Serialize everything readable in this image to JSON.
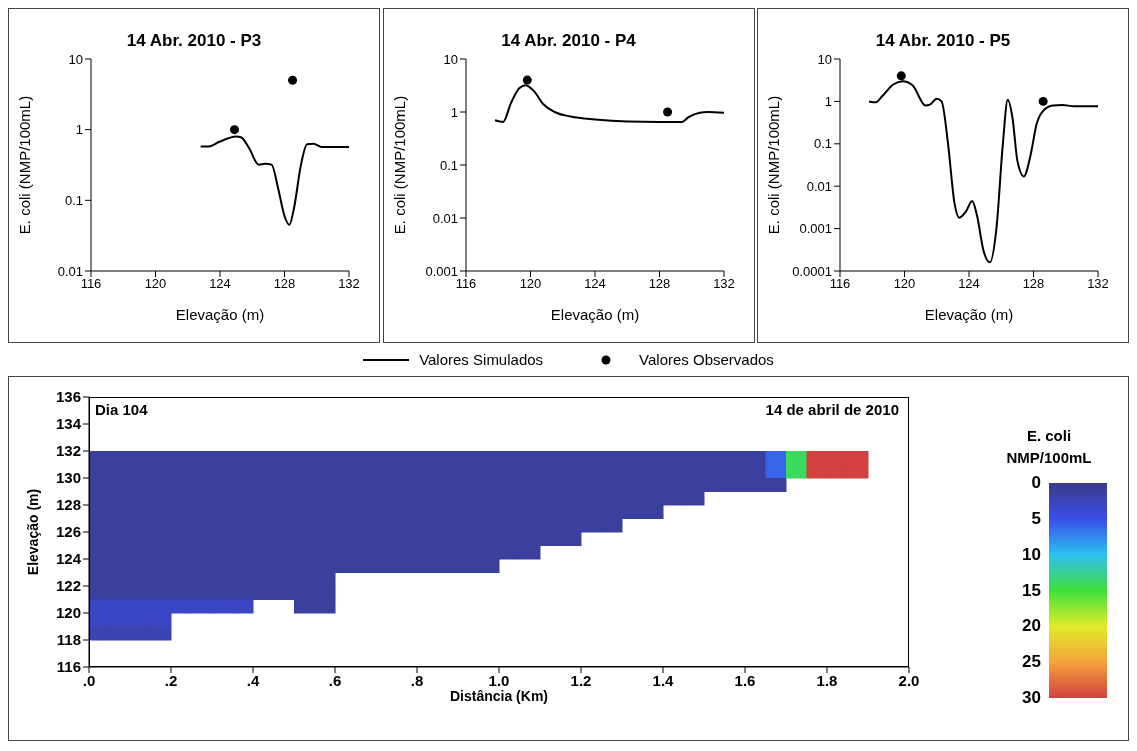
{
  "chart_data": [
    {
      "type": "line",
      "title": "14 Abr. 2010 - P3",
      "xlabel": "Elevação (m)",
      "ylabel": "E. coli (NMP/100mL)",
      "log": "y",
      "xlim": [
        116,
        132
      ],
      "xticks": [
        116,
        120,
        124,
        128,
        132
      ],
      "ylim": [
        0.01,
        10
      ],
      "yticks": [
        0.01,
        0.1,
        1,
        10
      ],
      "legend": "bottom",
      "series": [
        {
          "name": "Valores Simulados",
          "type": "line",
          "marker": "none",
          "color": "#000000",
          "x": [
            122.8,
            123.3,
            124,
            125,
            125.3,
            125.8,
            126.4,
            126.8,
            127.2,
            127.6,
            128,
            128.3,
            128.6,
            129,
            129.4,
            129.8,
            130.3,
            132
          ],
          "values": [
            0.58,
            0.58,
            0.68,
            0.8,
            0.78,
            0.55,
            0.32,
            0.33,
            0.32,
            0.15,
            0.06,
            0.045,
            0.08,
            0.3,
            0.62,
            0.63,
            0.57,
            0.57
          ]
        },
        {
          "name": "Valores Observados",
          "type": "scatter",
          "marker": "circle",
          "color": "#000000",
          "x": [
            124.9,
            128.5
          ],
          "values": [
            1,
            5
          ]
        }
      ]
    },
    {
      "type": "line",
      "title": "14 Abr. 2010 - P4",
      "xlabel": "Elevação (m)",
      "ylabel": "E. coli (NMP/100mL)",
      "log": "y",
      "xlim": [
        116,
        132
      ],
      "xticks": [
        116,
        120,
        124,
        128,
        132
      ],
      "ylim": [
        0.001,
        10
      ],
      "yticks": [
        0.001,
        0.01,
        0.1,
        1,
        10
      ],
      "series": [
        {
          "type": "line",
          "marker": "none",
          "color": "#000000",
          "x": [
            117.8,
            118.3,
            118.8,
            119.3,
            119.7,
            120.2,
            120.8,
            121.5,
            122.5,
            124,
            126,
            128,
            129.4,
            129.8,
            130.5,
            131,
            132
          ],
          "values": [
            0.7,
            0.65,
            1.5,
            2.8,
            3.2,
            2.5,
            1.4,
            1,
            0.82,
            0.72,
            0.66,
            0.65,
            0.65,
            0.8,
            0.97,
            1,
            0.97
          ]
        },
        {
          "type": "scatter",
          "marker": "circle",
          "color": "#000000",
          "x": [
            119.8,
            128.5
          ],
          "values": [
            4,
            1
          ]
        }
      ]
    },
    {
      "type": "line",
      "title": "14 Abr. 2010 - P5",
      "xlabel": "Elevação (m)",
      "ylabel": "E. coli (NMP/100mL)",
      "log": "y",
      "xlim": [
        116,
        132
      ],
      "xticks": [
        116,
        120,
        124,
        128,
        132
      ],
      "ylim": [
        0.0001,
        10
      ],
      "yticks": [
        0.0001,
        0.001,
        0.01,
        0.1,
        1,
        10
      ],
      "series": [
        {
          "type": "line",
          "marker": "none",
          "color": "#000000",
          "x": [
            117.8,
            118.2,
            118.6,
            119.3,
            119.9,
            120.5,
            121.3,
            121.6,
            122,
            122.3,
            122.7,
            123.1,
            123.4,
            123.8,
            124.2,
            124.5,
            124.9,
            125.3,
            125.7,
            126.1,
            126.4,
            126.7,
            127,
            127.4,
            127.8,
            128.2,
            128.6,
            129.2,
            129.8,
            130.5,
            132
          ],
          "values": [
            1,
            0.95,
            1.3,
            2.5,
            3,
            2.4,
            0.8,
            0.85,
            1.15,
            1,
            0.1,
            0.004,
            0.0018,
            0.0025,
            0.0045,
            0.002,
            0.0003,
            0.00016,
            0.001,
            0.1,
            1.1,
            0.4,
            0.04,
            0.017,
            0.05,
            0.3,
            0.6,
            0.8,
            0.82,
            0.77,
            0.77
          ]
        },
        {
          "type": "scatter",
          "marker": "circle",
          "color": "#000000",
          "x": [
            119.8,
            128.6
          ],
          "values": [
            4,
            1
          ]
        }
      ]
    },
    {
      "type": "heatmap",
      "xlabel": "Distância (Km)",
      "ylabel": "Elevação (m)",
      "clabel": "E. coli NMP/100mL",
      "annotations": [
        "Dia 104",
        "14 de abril de 2010"
      ],
      "xlim": [
        0,
        2
      ],
      "xticks": [
        {
          "value": 0,
          "label": ".0"
        },
        {
          "value": 0.2,
          "label": ".2"
        },
        {
          "value": 0.4,
          "label": ".4"
        },
        {
          "value": 0.6,
          "label": ".6"
        },
        {
          "value": 0.8,
          "label": ".8"
        },
        {
          "value": 1,
          "label": "1.0"
        },
        {
          "value": 1.2,
          "label": "1.2"
        },
        {
          "value": 1.4,
          "label": "1.4"
        },
        {
          "value": 1.6,
          "label": "1.6"
        },
        {
          "value": 1.8,
          "label": "1.8"
        },
        {
          "value": 2,
          "label": "2.0"
        }
      ],
      "ylim": [
        116,
        136
      ],
      "yticks": [
        116,
        118,
        120,
        122,
        124,
        126,
        128,
        130,
        132,
        134,
        136
      ],
      "clim": [
        0,
        30
      ],
      "cticks": [
        0,
        5,
        10,
        15,
        20,
        25,
        30
      ],
      "x": [
        0.025,
        0.075,
        0.125,
        0.175,
        0.225,
        0.275,
        0.325,
        0.375,
        0.425,
        0.475,
        0.525,
        0.575,
        0.625,
        0.675,
        0.725,
        0.775,
        0.825,
        0.875,
        0.925,
        0.975,
        1.025,
        1.075,
        1.125,
        1.175,
        1.225,
        1.275,
        1.325,
        1.375,
        1.425,
        1.475,
        1.525,
        1.575,
        1.625,
        1.675,
        1.725,
        1.775,
        1.825,
        1.875
      ],
      "y": [
        131.5,
        130.5,
        129.5,
        128.5,
        127.5,
        126.5,
        125.5,
        124.5,
        123.5,
        122.5,
        121.5,
        120.5,
        119.5,
        118.5
      ],
      "cells": [
        [
          1,
          1,
          1,
          1,
          1,
          1,
          1,
          1,
          1,
          1,
          1,
          1,
          1,
          1,
          1,
          1,
          1,
          1,
          1,
          1,
          1,
          1,
          1,
          1,
          1,
          1,
          1,
          1,
          1,
          1,
          1,
          1,
          1,
          6,
          14,
          30,
          30,
          30
        ],
        [
          1,
          1,
          1,
          1,
          1,
          1,
          1,
          1,
          1,
          1,
          1,
          1,
          1,
          1,
          1,
          1,
          1,
          1,
          1,
          1,
          1,
          1,
          1,
          1,
          1,
          1,
          1,
          1,
          1,
          1,
          1,
          1,
          1,
          6,
          14,
          30,
          30,
          30
        ],
        [
          1,
          1,
          1,
          1,
          1,
          1,
          1,
          1,
          1,
          1,
          1,
          1,
          1,
          1,
          1,
          1,
          1,
          1,
          1,
          1,
          1,
          1,
          1,
          1,
          1,
          1,
          1,
          1,
          1,
          1,
          1,
          1,
          1,
          1,
          null,
          null,
          null,
          null
        ],
        [
          1,
          1,
          1,
          1,
          1,
          1,
          1,
          1,
          1,
          1,
          1,
          1,
          1,
          1,
          1,
          1,
          1,
          1,
          1,
          1,
          1,
          1,
          1,
          1,
          1,
          1,
          1,
          1,
          1,
          1,
          null,
          null,
          null,
          null,
          null,
          null,
          null,
          null
        ],
        [
          1,
          1,
          1,
          1,
          1,
          1,
          1,
          1,
          1,
          1,
          1,
          1,
          1,
          1,
          1,
          1,
          1,
          1,
          1,
          1,
          1,
          1,
          1,
          1,
          1,
          1,
          1,
          1,
          null,
          null,
          null,
          null,
          null,
          null,
          null,
          null,
          null,
          null
        ],
        [
          1,
          1,
          1,
          1,
          1,
          1,
          1,
          1,
          1,
          1,
          1,
          1,
          1,
          1,
          1,
          1,
          1,
          1,
          1,
          1,
          1,
          1,
          1,
          1,
          1,
          1,
          null,
          null,
          null,
          null,
          null,
          null,
          null,
          null,
          null,
          null,
          null,
          null
        ],
        [
          1,
          1,
          1,
          1,
          1,
          1,
          1,
          1,
          1,
          1,
          1,
          1,
          1,
          1,
          1,
          1,
          1,
          1,
          1,
          1,
          1,
          1,
          1,
          1,
          null,
          null,
          null,
          null,
          null,
          null,
          null,
          null,
          null,
          null,
          null,
          null,
          null,
          null
        ],
        [
          1,
          1,
          1,
          1,
          1,
          1,
          1,
          1,
          1,
          1,
          1,
          1,
          1,
          1,
          1,
          1,
          1,
          1,
          1,
          1,
          1,
          1,
          null,
          null,
          null,
          null,
          null,
          null,
          null,
          null,
          null,
          null,
          null,
          null,
          null,
          null,
          null,
          null
        ],
        [
          1,
          1,
          1,
          1,
          1,
          1,
          1,
          1,
          1,
          1,
          1,
          1,
          1,
          1,
          1,
          1,
          1,
          1,
          1,
          1,
          null,
          null,
          null,
          null,
          null,
          null,
          null,
          null,
          null,
          null,
          null,
          null,
          null,
          null,
          null,
          null,
          null,
          null
        ],
        [
          1,
          1,
          1,
          1,
          1,
          1,
          1,
          1,
          1,
          1,
          1,
          1,
          null,
          null,
          null,
          null,
          null,
          null,
          null,
          null,
          null,
          null,
          null,
          null,
          null,
          null,
          null,
          null,
          null,
          null,
          null,
          null,
          null,
          null,
          null,
          null,
          null,
          null
        ],
        [
          1,
          1,
          1,
          1,
          1,
          1,
          1,
          1,
          1,
          1,
          1,
          1,
          null,
          null,
          null,
          null,
          null,
          null,
          null,
          null,
          null,
          null,
          null,
          null,
          null,
          null,
          null,
          null,
          null,
          null,
          null,
          null,
          null,
          null,
          null,
          null,
          null,
          null
        ],
        [
          3,
          3,
          3,
          3,
          3,
          3,
          3,
          3,
          null,
          null,
          1,
          1,
          null,
          null,
          null,
          null,
          null,
          null,
          null,
          null,
          null,
          null,
          null,
          null,
          null,
          null,
          null,
          null,
          null,
          null,
          null,
          null,
          null,
          null,
          null,
          null,
          null,
          null
        ],
        [
          3,
          3,
          3,
          3,
          null,
          null,
          null,
          null,
          null,
          null,
          null,
          null,
          null,
          null,
          null,
          null,
          null,
          null,
          null,
          null,
          null,
          null,
          null,
          null,
          null,
          null,
          null,
          null,
          null,
          null,
          null,
          null,
          null,
          null,
          null,
          null,
          null,
          null
        ],
        [
          2,
          2,
          2,
          2,
          null,
          null,
          null,
          null,
          null,
          null,
          null,
          null,
          null,
          null,
          null,
          null,
          null,
          null,
          null,
          null,
          null,
          null,
          null,
          null,
          null,
          null,
          null,
          null,
          null,
          null,
          null,
          null,
          null,
          null,
          null,
          null,
          null,
          null
        ]
      ]
    }
  ]
}
